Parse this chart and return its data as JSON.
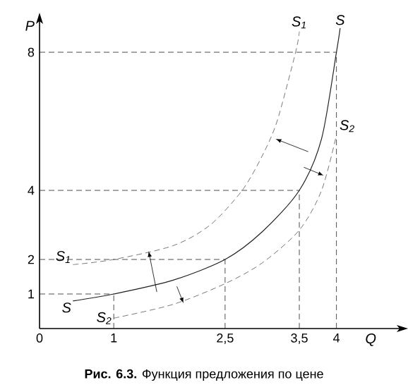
{
  "chart_data": {
    "type": "line",
    "title": "**Рис. 6.3.** Функция предложения по цене",
    "xlabel": "Q",
    "ylabel": "P",
    "xlim": [
      0,
      4.85
    ],
    "ylim": [
      0,
      8.9
    ],
    "xticks": [
      {
        "value": 0,
        "label": "0"
      },
      1,
      {
        "value": 2.5,
        "label": "2,5"
      },
      {
        "value": 3.5,
        "label": "3,5"
      },
      4
    ],
    "yticks": [
      1,
      2,
      4,
      8
    ],
    "grid": false,
    "marker": "none",
    "ref_lines": [
      {
        "axis": "x",
        "value": 1,
        "line_style": "dashed"
      },
      {
        "axis": "x",
        "value": 2.5,
        "line_style": "dashed"
      },
      {
        "axis": "x",
        "value": 3.5,
        "line_style": "dashed"
      },
      {
        "axis": "x",
        "value": 4,
        "line_style": "dashed"
      },
      {
        "axis": "y",
        "value": 1,
        "line_style": "dashed"
      },
      {
        "axis": "y",
        "value": 2,
        "line_style": "dashed"
      },
      {
        "axis": "y",
        "value": 4,
        "line_style": "dashed"
      },
      {
        "axis": "y",
        "value": 8,
        "line_style": "dashed"
      }
    ],
    "series": [
      {
        "name": "S",
        "color": "#222222",
        "line_style": "solid",
        "x": [
          0.45,
          1,
          1.8,
          2.5,
          3.0,
          3.5,
          3.8,
          4,
          4.05
        ],
        "values": [
          0.8,
          1,
          1.4,
          2,
          2.8,
          4,
          5.5,
          8,
          8.7
        ]
      },
      {
        "name": "S$_{1}$",
        "color": "#555555",
        "line_style": "dashed",
        "x": [
          0.45,
          1,
          1.8,
          2.3,
          2.73,
          3.0,
          3.2,
          3.45,
          3.5
        ],
        "values": [
          1.85,
          2,
          2.4,
          3.0,
          4,
          5,
          6,
          8,
          8.6
        ]
      },
      {
        "name": "S$_{2}$",
        "color": "#555555",
        "line_style": "dashed",
        "x": [
          1.0,
          1.8,
          2.5,
          3.0,
          3.5,
          3.8,
          4.0
        ],
        "values": [
          0.3,
          0.7,
          1.3,
          1.9,
          2.85,
          4,
          5.6
        ]
      }
    ]
  }
}
